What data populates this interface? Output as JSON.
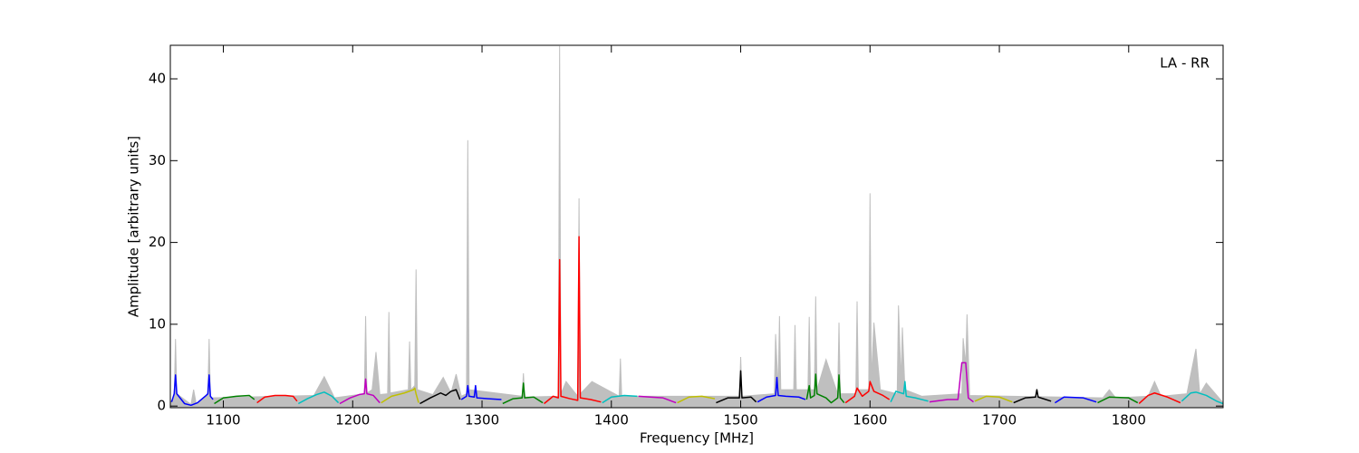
{
  "chart_data": {
    "type": "line",
    "annotation": "LA - RR",
    "xlabel": "Frequency [MHz]",
    "ylabel": "Amplitude [arbitrary units]",
    "xlim": [
      1059,
      1873
    ],
    "ylim": [
      -0.2,
      44.1
    ],
    "xticks": [
      1100,
      1200,
      1300,
      1400,
      1500,
      1600,
      1700,
      1800
    ],
    "yticks": [
      0,
      10,
      20,
      30,
      40
    ],
    "series": [
      {
        "color": "#bfbfbf",
        "area": true,
        "x": [
          1059,
          1062,
          1063,
          1064,
          1075,
          1077,
          1079,
          1088,
          1089,
          1090,
          1170,
          1178,
          1186,
          1209,
          1210,
          1211,
          1215,
          1218,
          1221,
          1227,
          1228,
          1229,
          1243,
          1244,
          1245,
          1248,
          1249,
          1250,
          1262,
          1270,
          1276,
          1280,
          1284,
          1288,
          1289,
          1290,
          1331,
          1332,
          1333,
          1359,
          1360,
          1361,
          1365,
          1374,
          1375,
          1376,
          1385,
          1406,
          1407,
          1408,
          1499,
          1500,
          1501,
          1526,
          1527,
          1529,
          1530,
          1531,
          1541,
          1542,
          1543,
          1552,
          1553,
          1554,
          1557,
          1558,
          1559,
          1566,
          1575,
          1576,
          1577,
          1589,
          1590,
          1591,
          1599,
          1600,
          1601,
          1603,
          1608,
          1621,
          1622,
          1624,
          1625,
          1627,
          1640,
          1671,
          1672,
          1674,
          1675,
          1677,
          1780,
          1785,
          1790,
          1815,
          1820,
          1825,
          1845,
          1852,
          1855,
          1860,
          1873
        ],
        "values": [
          0.5,
          1,
          8.2,
          1.5,
          0.2,
          2.0,
          0.3,
          1.5,
          8.2,
          1,
          1.3,
          3.6,
          1,
          1.5,
          11.0,
          1.6,
          2,
          6.6,
          1.4,
          1.5,
          11.5,
          1.6,
          2,
          7.9,
          2,
          2.5,
          16.7,
          2,
          1.4,
          3.5,
          1.6,
          3.9,
          1.2,
          1.5,
          32.5,
          2,
          1.2,
          4.0,
          1.1,
          1.2,
          44,
          1.5,
          3.0,
          1.2,
          25.4,
          1.5,
          3.0,
          1.2,
          5.8,
          1.2,
          1.2,
          6.0,
          1.2,
          1.5,
          8.8,
          2,
          11.0,
          2,
          2,
          9.9,
          2,
          2,
          10.9,
          2,
          2,
          13.4,
          2,
          5.7,
          1.5,
          10.2,
          1.5,
          1.5,
          12.8,
          2,
          2,
          26.0,
          3,
          10.2,
          2,
          1.5,
          12.3,
          3,
          9.6,
          2,
          1.2,
          1.5,
          8.3,
          5,
          11.2,
          1.3,
          1.0,
          2.0,
          1.0,
          1.2,
          3.0,
          1.2,
          1.5,
          7.0,
          1.5,
          2.8,
          0.4
        ]
      },
      {
        "color": "#0000ff",
        "x": [
          1060,
          1062,
          1063,
          1064,
          1070,
          1075,
          1080,
          1086,
          1088,
          1089,
          1090,
          1092
        ],
        "values": [
          0.5,
          1.5,
          3.8,
          1.5,
          0.3,
          0.1,
          0.4,
          1.2,
          1.5,
          3.8,
          1.2,
          0.8
        ]
      },
      {
        "color": "#008000",
        "x": [
          1093,
          1100,
          1110,
          1120,
          1124
        ],
        "values": [
          0.3,
          1.0,
          1.2,
          1.3,
          0.8
        ]
      },
      {
        "color": "#ff0000",
        "x": [
          1126,
          1132,
          1140,
          1148,
          1154,
          1157
        ],
        "values": [
          0.4,
          1.1,
          1.3,
          1.3,
          1.2,
          0.6
        ]
      },
      {
        "color": "#00bfbf",
        "x": [
          1158,
          1165,
          1172,
          1178,
          1184,
          1189
        ],
        "values": [
          0.3,
          0.9,
          1.4,
          1.7,
          1.2,
          0.4
        ]
      },
      {
        "color": "#bf00bf",
        "x": [
          1190,
          1198,
          1205,
          1209,
          1210,
          1211,
          1216,
          1221
        ],
        "values": [
          0.3,
          1.0,
          1.4,
          1.5,
          3.3,
          1.5,
          1.3,
          0.4
        ]
      },
      {
        "color": "#bfbf00",
        "x": [
          1222,
          1230,
          1240,
          1247,
          1248,
          1249,
          1251
        ],
        "values": [
          0.4,
          1.2,
          1.6,
          2.0,
          2.2,
          1.5,
          0.4
        ]
      },
      {
        "color": "#000000",
        "x": [
          1252,
          1260,
          1268,
          1272,
          1276,
          1280,
          1283
        ],
        "values": [
          0.3,
          1.0,
          1.6,
          1.3,
          1.8,
          2.0,
          0.8
        ]
      },
      {
        "color": "#0000ff",
        "x": [
          1284,
          1288,
          1289,
          1290,
          1294,
          1295,
          1296,
          1305,
          1315
        ],
        "values": [
          0.8,
          1.2,
          2.5,
          1.2,
          1.1,
          2.5,
          1.0,
          0.9,
          0.8
        ]
      },
      {
        "color": "#008000",
        "x": [
          1316,
          1324,
          1331,
          1332,
          1333,
          1340,
          1347
        ],
        "values": [
          0.3,
          0.9,
          1.0,
          2.8,
          1.0,
          1.1,
          0.4
        ]
      },
      {
        "color": "#ff0000",
        "x": [
          1348,
          1355,
          1359,
          1360,
          1361,
          1368,
          1374,
          1375,
          1376,
          1384,
          1392
        ],
        "values": [
          0.3,
          1.2,
          1.0,
          17.9,
          1.2,
          0.9,
          0.7,
          20.7,
          1.0,
          0.8,
          0.5
        ]
      },
      {
        "color": "#00bfbf",
        "x": [
          1393,
          1400,
          1410,
          1420
        ],
        "values": [
          0.4,
          1.1,
          1.3,
          1.2
        ]
      },
      {
        "color": "#bf00bf",
        "x": [
          1421,
          1430,
          1440,
          1450
        ],
        "values": [
          1.2,
          1.1,
          1.0,
          0.4
        ]
      },
      {
        "color": "#bfbf00",
        "x": [
          1451,
          1460,
          1470,
          1480
        ],
        "values": [
          0.4,
          1.1,
          1.2,
          0.9
        ]
      },
      {
        "color": "#000000",
        "x": [
          1481,
          1490,
          1499,
          1500,
          1501,
          1508,
          1512
        ],
        "values": [
          0.4,
          1.0,
          1.0,
          4.3,
          1.0,
          1.1,
          0.5
        ]
      },
      {
        "color": "#0000ff",
        "x": [
          1513,
          1520,
          1527,
          1528,
          1529,
          1535,
          1545,
          1550
        ],
        "values": [
          0.5,
          1.1,
          1.3,
          3.5,
          1.3,
          1.2,
          1.1,
          0.8
        ]
      },
      {
        "color": "#008000",
        "x": [
          1551,
          1553,
          1554,
          1557,
          1558,
          1559,
          1566,
          1570,
          1575,
          1576,
          1577,
          1580
        ],
        "values": [
          0.8,
          2.5,
          1.0,
          1.3,
          3.9,
          1.5,
          1.0,
          0.4,
          1.0,
          3.8,
          1.0,
          0.4
        ]
      },
      {
        "color": "#ff0000",
        "x": [
          1581,
          1588,
          1590,
          1594,
          1599,
          1600,
          1603,
          1610,
          1615
        ],
        "values": [
          0.4,
          1.2,
          2.2,
          1.2,
          1.8,
          3.0,
          1.8,
          1.3,
          0.8
        ]
      },
      {
        "color": "#00bfbf",
        "x": [
          1616,
          1620,
          1626,
          1627,
          1628,
          1635,
          1645
        ],
        "values": [
          0.5,
          1.8,
          1.5,
          3.0,
          1.2,
          1.0,
          0.6
        ]
      },
      {
        "color": "#bf00bf",
        "x": [
          1646,
          1660,
          1668,
          1671,
          1674,
          1676,
          1680
        ],
        "values": [
          0.5,
          0.8,
          0.8,
          5.3,
          5.3,
          1.0,
          0.5
        ]
      },
      {
        "color": "#bfbf00",
        "x": [
          1681,
          1690,
          1700,
          1710
        ],
        "values": [
          0.6,
          1.2,
          1.1,
          0.5
        ]
      },
      {
        "color": "#000000",
        "x": [
          1711,
          1720,
          1728,
          1729,
          1730,
          1740
        ],
        "values": [
          0.4,
          1.0,
          1.1,
          2.0,
          1.1,
          0.6
        ]
      },
      {
        "color": "#0000ff",
        "x": [
          1743,
          1750,
          1765,
          1775
        ],
        "values": [
          0.4,
          1.1,
          1.0,
          0.5
        ]
      },
      {
        "color": "#008000",
        "x": [
          1776,
          1785,
          1800,
          1807
        ],
        "values": [
          0.4,
          1.1,
          1.0,
          0.4
        ]
      },
      {
        "color": "#ff0000",
        "x": [
          1808,
          1815,
          1820,
          1830,
          1840
        ],
        "values": [
          0.3,
          1.3,
          1.6,
          1.1,
          0.4
        ]
      },
      {
        "color": "#00bfbf",
        "x": [
          1841,
          1848,
          1852,
          1860,
          1868,
          1873
        ],
        "values": [
          0.6,
          1.6,
          1.7,
          1.3,
          0.6,
          0.3
        ]
      }
    ]
  }
}
